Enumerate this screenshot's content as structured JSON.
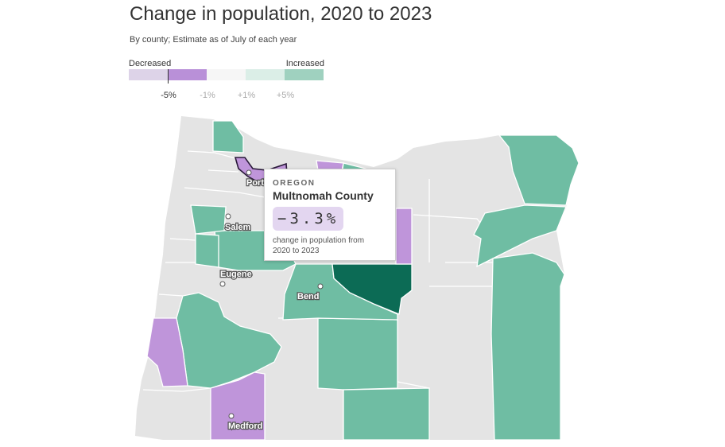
{
  "header": {
    "title": "Change in population, 2020 to 2023",
    "subtitle": "By county; Estimate as of July of each year"
  },
  "legend": {
    "left_label": "Decreased",
    "right_label": "Increased",
    "ticks": [
      "-5%",
      "-1%",
      "+1%",
      "+5%"
    ],
    "selected_tick": "-5%",
    "colors": [
      "#ddd3e8",
      "#b990d8",
      "#f6f6f6",
      "#dbeee7",
      "#9fd1bf"
    ]
  },
  "colors": {
    "decrease": "#bf95da",
    "decrease_light": "#ddd3e8",
    "neutral": "#e4e4e4",
    "increase": "#6fbda3",
    "increase_strong": "#0c6b55",
    "border": "#ffffff"
  },
  "cities": [
    {
      "name": "Portland"
    },
    {
      "name": "Salem"
    },
    {
      "name": "Eugene"
    },
    {
      "name": "Bend"
    },
    {
      "name": "Medford"
    }
  ],
  "tooltip": {
    "state": "OREGON",
    "county": "Multnomah County",
    "value": "−3.3%",
    "description": "change in population from 2020 to 2023"
  }
}
